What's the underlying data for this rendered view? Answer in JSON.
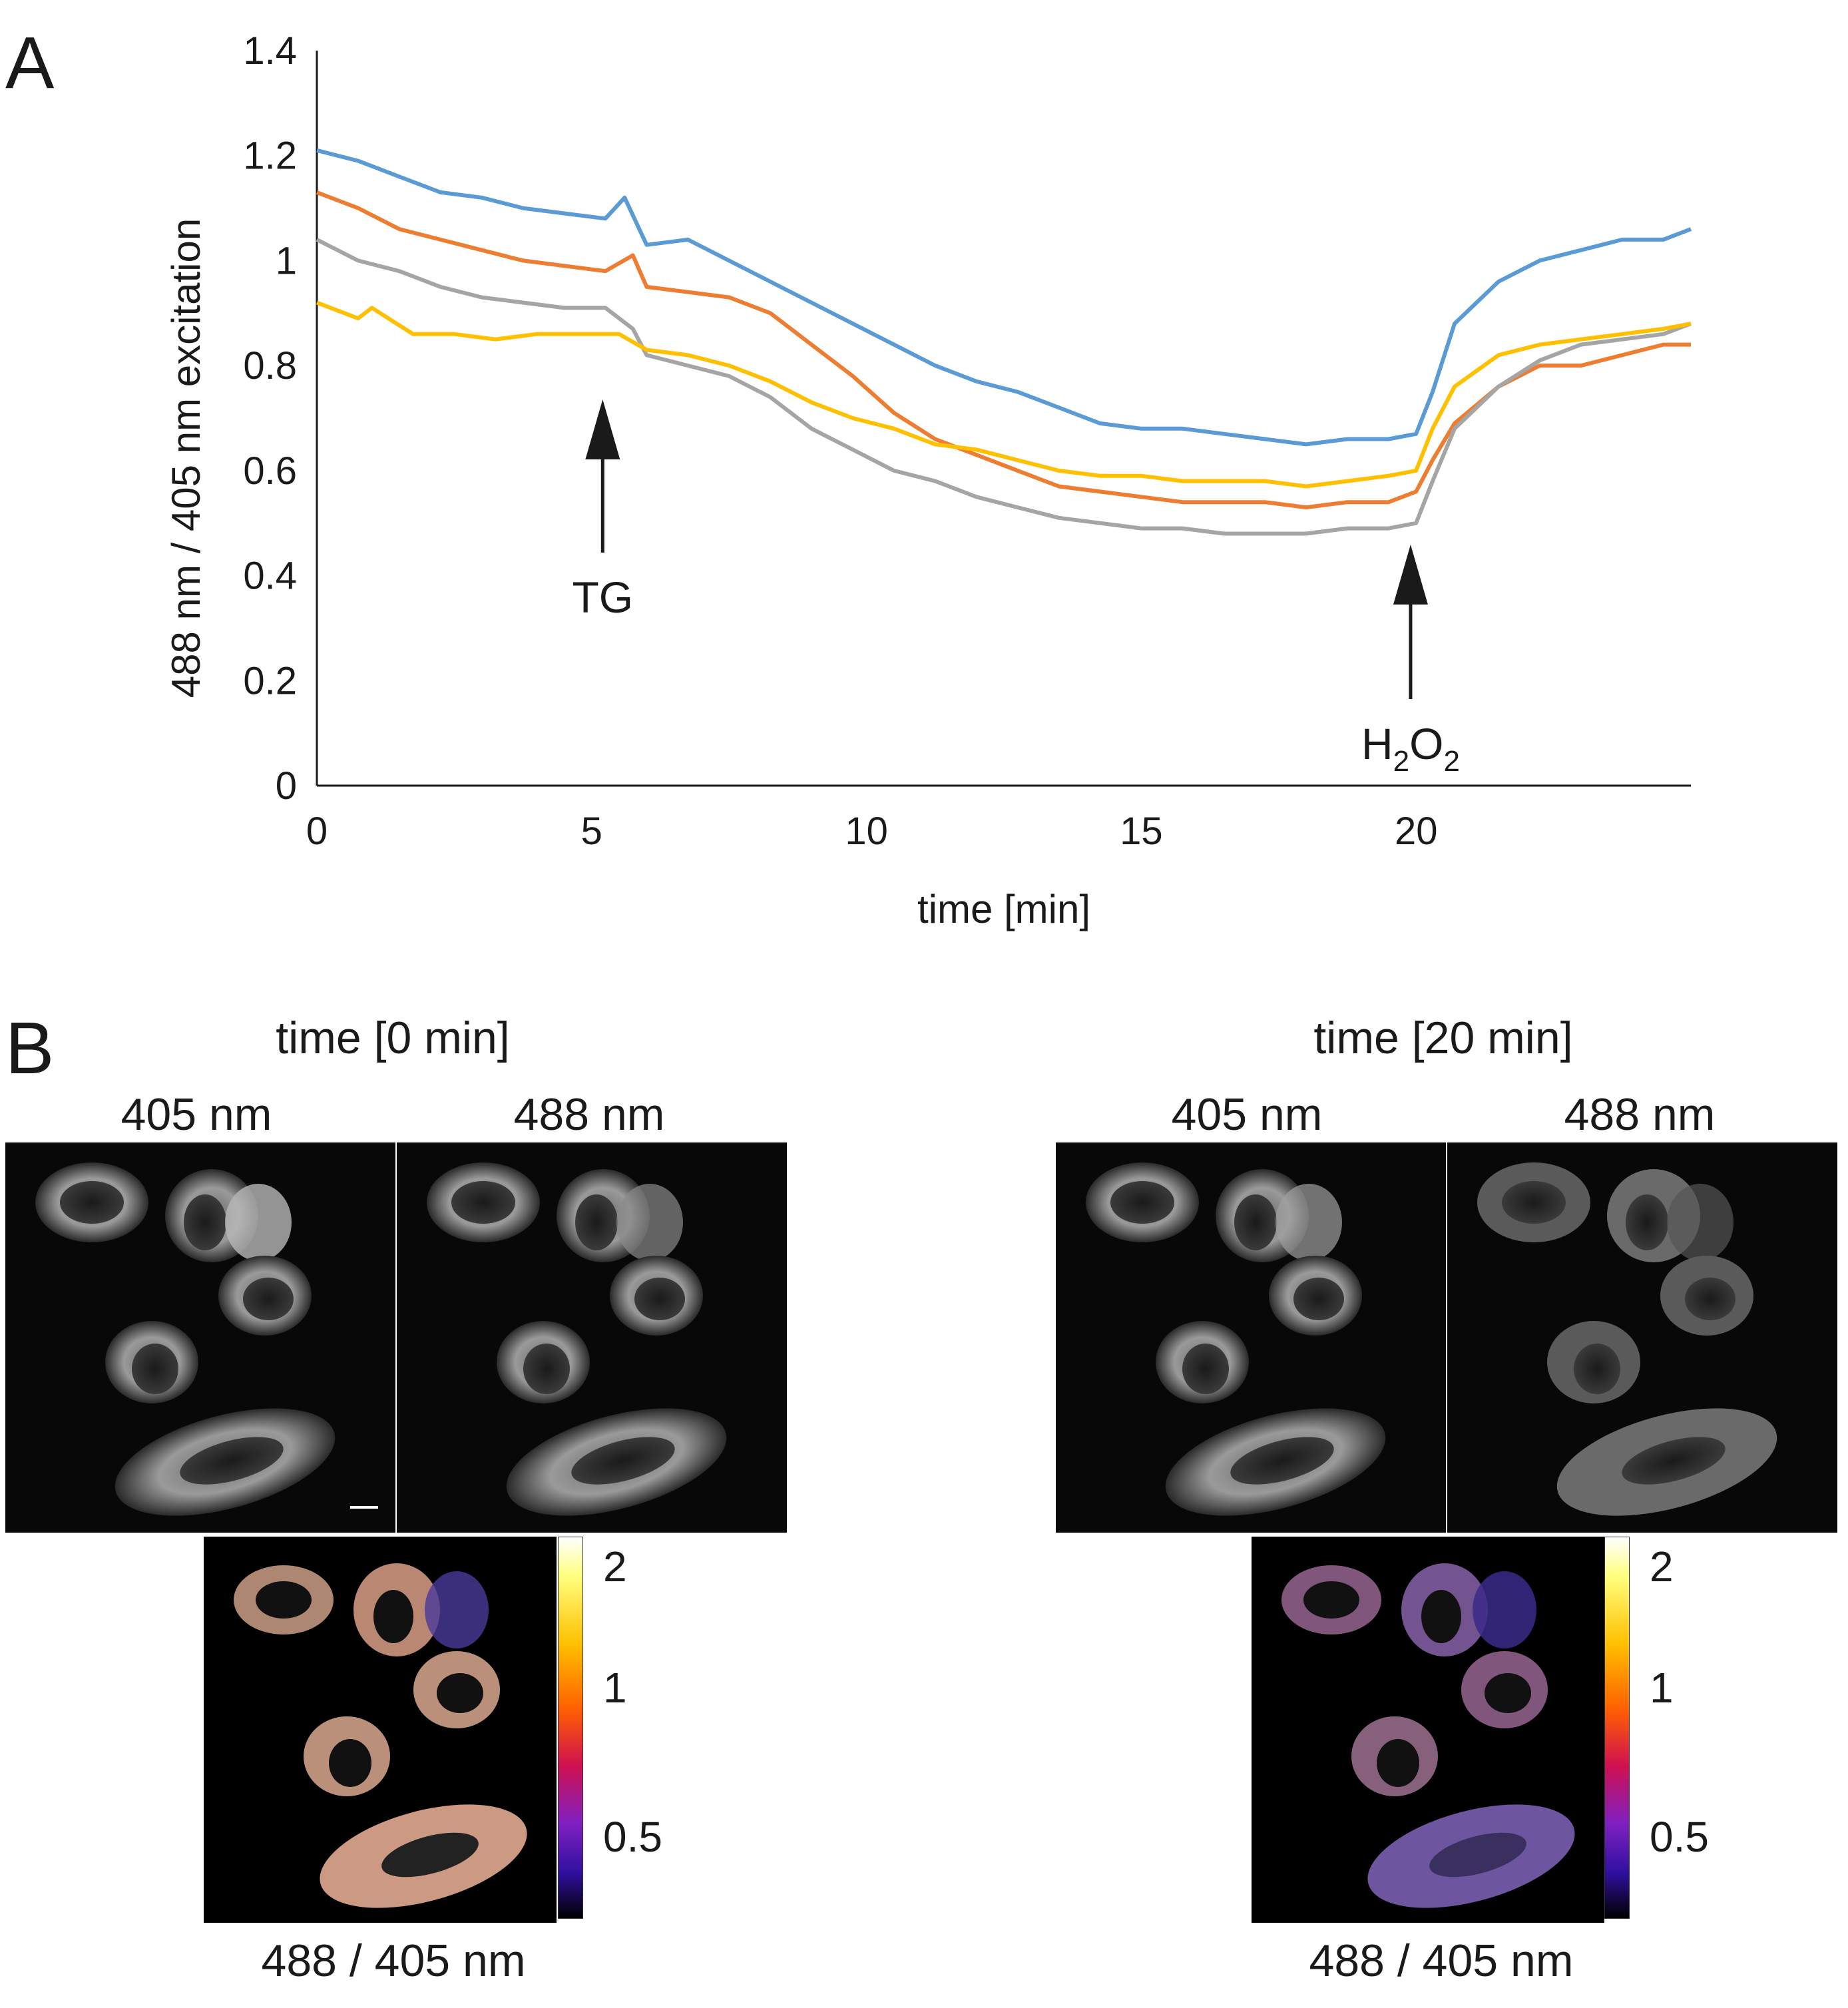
{
  "panel_a": {
    "letter": "A",
    "annotations": [
      {
        "text": "TG",
        "x": 5.2
      },
      {
        "text": "H",
        "sub1": "2",
        "text2": "O",
        "sub2": "2",
        "x": 19.9
      }
    ]
  },
  "chart_data": {
    "type": "line",
    "xlabel": "time [min]",
    "ylabel": "488 nm / 405 nm excitation",
    "xlim": [
      0,
      25
    ],
    "ylim": [
      0,
      1.4
    ],
    "xticks": [
      0,
      5,
      10,
      15,
      20
    ],
    "yticks": [
      {
        "v": 0,
        "label": "0"
      },
      {
        "v": 0.2,
        "label": "0.2"
      },
      {
        "v": 0.4,
        "label": "0.4"
      },
      {
        "v": 0.6,
        "label": "0.6"
      },
      {
        "v": 0.8,
        "label": "0.8"
      },
      {
        "v": 1.0,
        "label": "1"
      },
      {
        "v": 1.2,
        "label": "1.2"
      },
      {
        "v": 1.4,
        "label": "1.4"
      }
    ],
    "grid": false,
    "legend": "none",
    "series": [
      {
        "color": "#5b9bd5",
        "points": [
          [
            0,
            1.21
          ],
          [
            0.75,
            1.19
          ],
          [
            1.5,
            1.16
          ],
          [
            2.25,
            1.13
          ],
          [
            3,
            1.12
          ],
          [
            3.75,
            1.1
          ],
          [
            4.5,
            1.09
          ],
          [
            5.25,
            1.08
          ],
          [
            5.6,
            1.12
          ],
          [
            6,
            1.03
          ],
          [
            6.75,
            1.04
          ],
          [
            7.5,
            1.0
          ],
          [
            8.25,
            0.96
          ],
          [
            9,
            0.92
          ],
          [
            9.75,
            0.88
          ],
          [
            10.5,
            0.84
          ],
          [
            11.25,
            0.8
          ],
          [
            12,
            0.77
          ],
          [
            12.75,
            0.75
          ],
          [
            13.5,
            0.72
          ],
          [
            14.25,
            0.69
          ],
          [
            15,
            0.68
          ],
          [
            15.75,
            0.68
          ],
          [
            16.5,
            0.67
          ],
          [
            17.25,
            0.66
          ],
          [
            18,
            0.65
          ],
          [
            18.75,
            0.66
          ],
          [
            19.5,
            0.66
          ],
          [
            20,
            0.67
          ],
          [
            20.3,
            0.75
          ],
          [
            20.7,
            0.88
          ],
          [
            21.5,
            0.96
          ],
          [
            22.25,
            1.0
          ],
          [
            23,
            1.02
          ],
          [
            23.75,
            1.04
          ],
          [
            24.5,
            1.04
          ],
          [
            25,
            1.06
          ]
        ]
      },
      {
        "color": "#ed7d31",
        "points": [
          [
            0,
            1.13
          ],
          [
            0.75,
            1.1
          ],
          [
            1.5,
            1.06
          ],
          [
            2.25,
            1.04
          ],
          [
            3,
            1.02
          ],
          [
            3.75,
            1.0
          ],
          [
            4.5,
            0.99
          ],
          [
            5.25,
            0.98
          ],
          [
            5.75,
            1.01
          ],
          [
            6,
            0.95
          ],
          [
            6.75,
            0.94
          ],
          [
            7.5,
            0.93
          ],
          [
            8.25,
            0.9
          ],
          [
            9,
            0.84
          ],
          [
            9.75,
            0.78
          ],
          [
            10.5,
            0.71
          ],
          [
            11.25,
            0.66
          ],
          [
            12,
            0.63
          ],
          [
            12.75,
            0.6
          ],
          [
            13.5,
            0.57
          ],
          [
            14.25,
            0.56
          ],
          [
            15,
            0.55
          ],
          [
            15.75,
            0.54
          ],
          [
            16.5,
            0.54
          ],
          [
            17.25,
            0.54
          ],
          [
            18,
            0.53
          ],
          [
            18.75,
            0.54
          ],
          [
            19.5,
            0.54
          ],
          [
            20,
            0.56
          ],
          [
            20.3,
            0.62
          ],
          [
            20.7,
            0.69
          ],
          [
            21.5,
            0.76
          ],
          [
            22.25,
            0.8
          ],
          [
            23,
            0.8
          ],
          [
            23.75,
            0.82
          ],
          [
            24.5,
            0.84
          ],
          [
            25,
            0.84
          ]
        ]
      },
      {
        "color": "#a5a5a5",
        "points": [
          [
            0,
            1.04
          ],
          [
            0.75,
            1.0
          ],
          [
            1.5,
            0.98
          ],
          [
            2.25,
            0.95
          ],
          [
            3,
            0.93
          ],
          [
            3.75,
            0.92
          ],
          [
            4.5,
            0.91
          ],
          [
            5.25,
            0.91
          ],
          [
            5.75,
            0.87
          ],
          [
            6,
            0.82
          ],
          [
            6.75,
            0.8
          ],
          [
            7.5,
            0.78
          ],
          [
            8.25,
            0.74
          ],
          [
            9,
            0.68
          ],
          [
            9.75,
            0.64
          ],
          [
            10.5,
            0.6
          ],
          [
            11.25,
            0.58
          ],
          [
            12,
            0.55
          ],
          [
            12.75,
            0.53
          ],
          [
            13.5,
            0.51
          ],
          [
            14.25,
            0.5
          ],
          [
            15,
            0.49
          ],
          [
            15.75,
            0.49
          ],
          [
            16.5,
            0.48
          ],
          [
            17.25,
            0.48
          ],
          [
            18,
            0.48
          ],
          [
            18.75,
            0.49
          ],
          [
            19.5,
            0.49
          ],
          [
            20,
            0.5
          ],
          [
            20.3,
            0.58
          ],
          [
            20.7,
            0.68
          ],
          [
            21.5,
            0.76
          ],
          [
            22.25,
            0.81
          ],
          [
            23,
            0.84
          ],
          [
            23.75,
            0.85
          ],
          [
            24.5,
            0.86
          ],
          [
            25,
            0.88
          ]
        ]
      },
      {
        "color": "#ffc000",
        "points": [
          [
            0,
            0.92
          ],
          [
            0.75,
            0.89
          ],
          [
            1,
            0.91
          ],
          [
            1.75,
            0.86
          ],
          [
            2.5,
            0.86
          ],
          [
            3.25,
            0.85
          ],
          [
            4,
            0.86
          ],
          [
            4.75,
            0.86
          ],
          [
            5.5,
            0.86
          ],
          [
            6,
            0.83
          ],
          [
            6.75,
            0.82
          ],
          [
            7.5,
            0.8
          ],
          [
            8.25,
            0.77
          ],
          [
            9,
            0.73
          ],
          [
            9.75,
            0.7
          ],
          [
            10.5,
            0.68
          ],
          [
            11.25,
            0.65
          ],
          [
            12,
            0.64
          ],
          [
            12.75,
            0.62
          ],
          [
            13.5,
            0.6
          ],
          [
            14.25,
            0.59
          ],
          [
            15,
            0.59
          ],
          [
            15.75,
            0.58
          ],
          [
            16.5,
            0.58
          ],
          [
            17.25,
            0.58
          ],
          [
            18,
            0.57
          ],
          [
            18.75,
            0.58
          ],
          [
            19.5,
            0.59
          ],
          [
            20,
            0.6
          ],
          [
            20.3,
            0.68
          ],
          [
            20.7,
            0.76
          ],
          [
            21.5,
            0.82
          ],
          [
            22.25,
            0.84
          ],
          [
            23,
            0.85
          ],
          [
            23.75,
            0.86
          ],
          [
            24.5,
            0.87
          ],
          [
            25,
            0.88
          ]
        ]
      }
    ]
  },
  "panel_b": {
    "letter": "B",
    "groups": [
      {
        "title": "time [0 min]",
        "left_label": "405 nm",
        "right_label": "488 nm",
        "ratio_label": "488 / 405 nm",
        "colorbar_ticks": [
          "2",
          "1",
          "0.5"
        ]
      },
      {
        "title": "time [20 min]",
        "left_label": "405 nm",
        "right_label": "488 nm",
        "ratio_label": "488 / 405 nm",
        "colorbar_ticks": [
          "2",
          "1",
          "0.5"
        ]
      }
    ]
  }
}
